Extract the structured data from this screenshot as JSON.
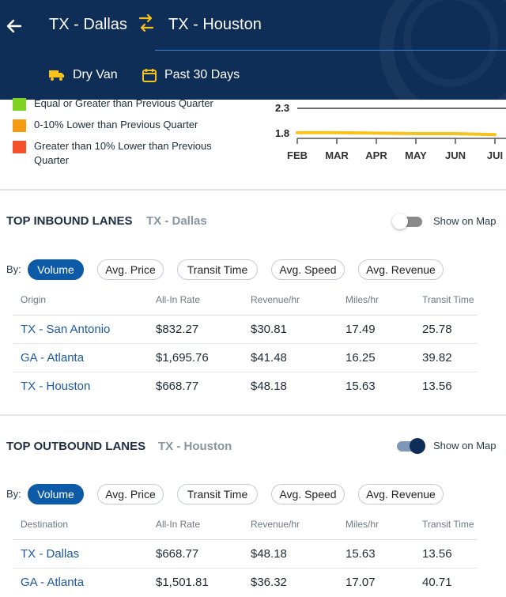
{
  "header": {
    "origin": "TX - Dallas",
    "destination": "TX - Houston",
    "equipment": "Dry Van",
    "period": "Past 30 Days"
  },
  "colors": {
    "header_bg": "#0e2d57",
    "accent_yellow": "#f7c21c",
    "active_chip": "#0d5aa7",
    "legend_green": "#7ed321",
    "legend_orange": "#f59b12",
    "legend_red": "#f4502a"
  },
  "legend": [
    {
      "label": "Equal or Greater than Previous Quarter",
      "color": "#7ed321"
    },
    {
      "label": "0-10% Lower than Previous Quarter",
      "color": "#f59b12"
    },
    {
      "label": "Greater than 10% Lower than Previous Quarter",
      "color": "#f4502a"
    }
  ],
  "chart_data": {
    "type": "line",
    "categories": [
      "FEB",
      "MAR",
      "APR",
      "MAY",
      "JUN",
      "JUL"
    ],
    "tick_labels": [
      "FEB",
      "MAR",
      "APR",
      "MAY",
      "JUN",
      "JUI"
    ],
    "y_ticks": [
      "2.3",
      "1.8"
    ],
    "series": [
      {
        "values": [
          1.82,
          1.82,
          1.81,
          1.8,
          1.8,
          1.78
        ],
        "color": "#f7c21c"
      }
    ],
    "ylim": [
      1.8,
      2.3
    ]
  },
  "inbound": {
    "title": "TOP INBOUND LANES",
    "subtitle": "TX - Dallas",
    "toggle_label": "Show on Map",
    "toggle_on": false,
    "by_label": "By:",
    "chips": [
      "Volume",
      "Avg. Price",
      "Transit Time",
      "Avg. Speed",
      "Avg. Revenue"
    ],
    "active_chip": 0,
    "columns": [
      "Origin",
      "All-In Rate",
      "Revenue/hr",
      "Miles/hr",
      "Transit Time"
    ],
    "rows": [
      [
        "TX - San Antonio",
        "$832.27",
        "$30.81",
        "17.49",
        "25.78"
      ],
      [
        "GA - Atlanta",
        "$1,695.76",
        "$41.48",
        "16.25",
        "39.82"
      ],
      [
        "TX - Houston",
        "$668.77",
        "$48.18",
        "15.63",
        "13.56"
      ]
    ]
  },
  "outbound": {
    "title": "TOP OUTBOUND LANES",
    "subtitle": "TX - Houston",
    "toggle_label": "Show on Map",
    "toggle_on": true,
    "by_label": "By:",
    "chips": [
      "Volume",
      "Avg. Price",
      "Transit Time",
      "Avg. Speed",
      "Avg. Revenue"
    ],
    "active_chip": 0,
    "columns": [
      "Destination",
      "All-In Rate",
      "Revenue/hr",
      "Miles/hr",
      "Transit Time"
    ],
    "rows": [
      [
        "TX - Dallas",
        "$668.77",
        "$48.18",
        "15.63",
        "13.56"
      ],
      [
        "GA - Atlanta",
        "$1,501.81",
        "$36.32",
        "17.07",
        "40.71"
      ]
    ]
  }
}
